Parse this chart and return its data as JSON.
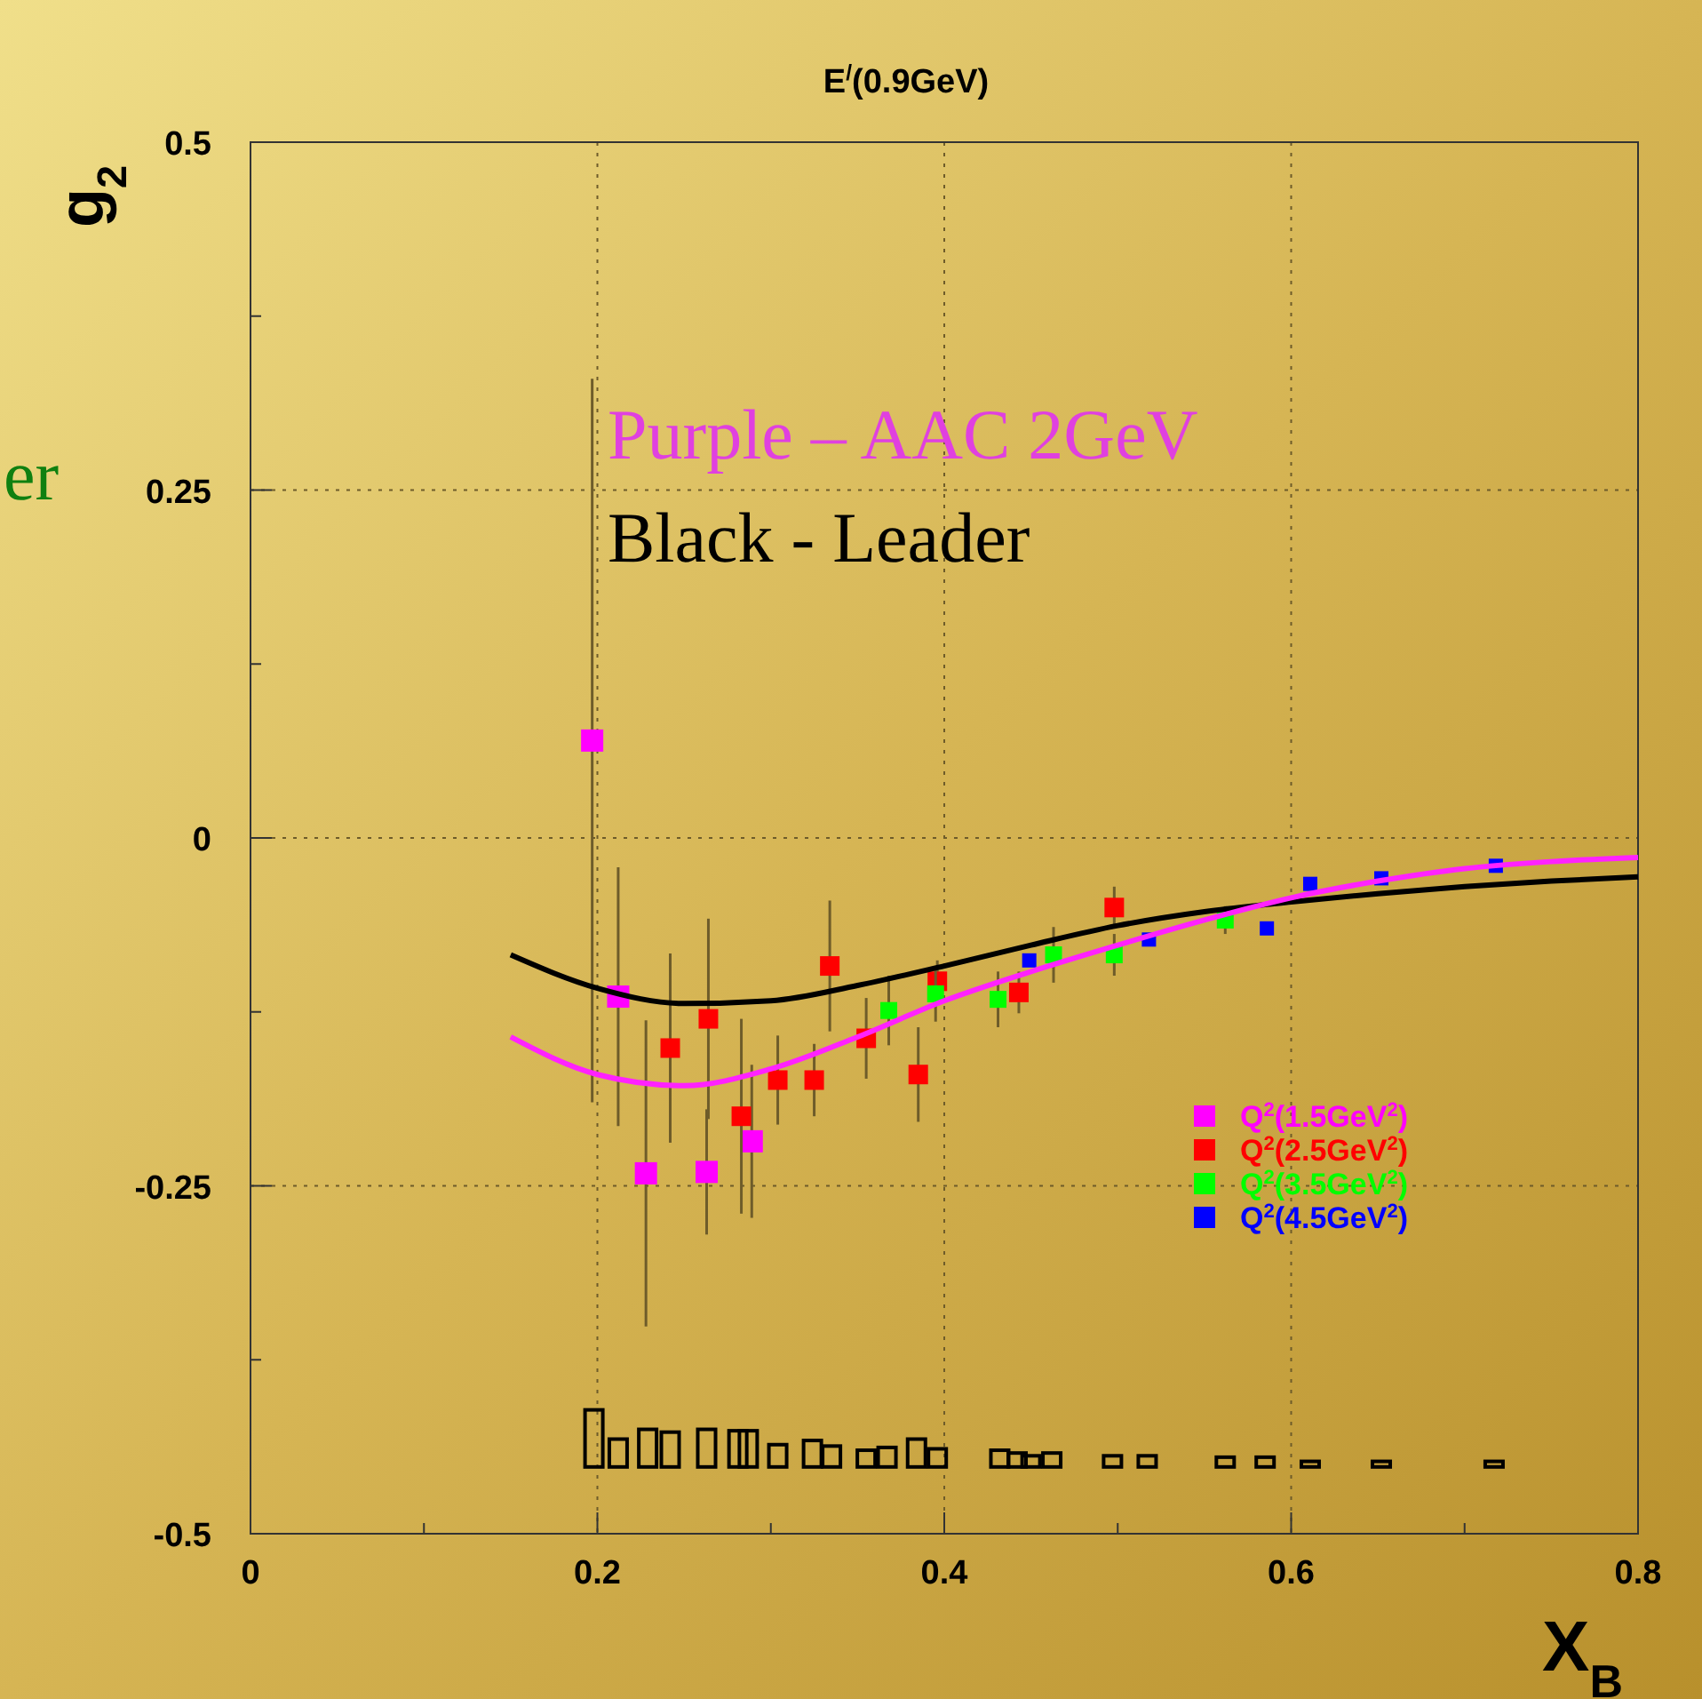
{
  "chart_data": {
    "type": "scatter",
    "title": "E$^{/}$(0.9GeV)",
    "xlabel": "X$_{B}$",
    "ylabel": "g$_{2}$",
    "xlim": [
      0,
      0.8
    ],
    "ylim": [
      -0.5,
      0.5
    ],
    "xticks": [
      0,
      {
        "value": 0.1,
        "label": null
      },
      0.2,
      {
        "value": 0.3,
        "label": null
      },
      0.4,
      {
        "value": 0.5,
        "label": null
      },
      0.6,
      {
        "value": 0.7,
        "label": null
      },
      0.8
    ],
    "yticks": [
      -0.5,
      {
        "value": -0.375,
        "label": null
      },
      -0.25,
      {
        "value": -0.125,
        "label": null
      },
      0,
      {
        "value": 0.125,
        "label": null
      },
      0.25,
      {
        "value": 0.375,
        "label": null
      },
      0.5
    ],
    "grid": true,
    "legend": "bottom right",
    "annotations": [
      "Purple – AAC 2GeV",
      "Black  - Leader",
      "er"
    ],
    "series": [
      {
        "type": "line",
        "color": "#000000",
        "line_style": "solid",
        "marker": "none",
        "x": [
          0.15,
          0.2,
          0.25,
          0.3,
          0.35,
          0.4,
          0.45,
          0.5,
          0.55,
          0.6,
          0.65,
          0.7,
          0.75,
          0.8
        ],
        "values": [
          -0.084,
          -0.108,
          -0.119,
          -0.117,
          -0.106,
          -0.092,
          -0.077,
          -0.063,
          -0.053,
          -0.046,
          -0.04,
          -0.035,
          -0.031,
          -0.028
        ]
      },
      {
        "type": "line",
        "color": "#ff22ff",
        "line_style": "solid",
        "marker": "none",
        "x": [
          0.15,
          0.2,
          0.25,
          0.3,
          0.35,
          0.4,
          0.45,
          0.5,
          0.55,
          0.6,
          0.65,
          0.7,
          0.75,
          0.8
        ],
        "values": [
          -0.143,
          -0.17,
          -0.178,
          -0.166,
          -0.143,
          -0.117,
          -0.096,
          -0.077,
          -0.059,
          -0.043,
          -0.031,
          -0.022,
          -0.017,
          -0.014
        ]
      },
      {
        "type": "bar",
        "color": "#000000",
        "x": [
          0.198,
          0.212,
          0.229,
          0.242,
          0.263,
          0.281,
          0.287,
          0.304,
          0.324,
          0.335,
          0.355,
          0.367,
          0.384,
          0.396,
          0.432,
          0.442,
          0.45,
          0.462,
          0.497,
          0.517,
          0.562,
          0.585,
          0.611,
          0.652,
          0.717
        ],
        "values": [
          0.041,
          0.02,
          0.027,
          0.025,
          0.027,
          0.026,
          0.026,
          0.016,
          0.019,
          0.015,
          0.012,
          0.014,
          0.02,
          0.013,
          0.012,
          0.01,
          0.008,
          0.01,
          0.008,
          0.008,
          0.007,
          0.007,
          0.004,
          0.004,
          0.004
        ],
        "base": [
          -0.452,
          -0.452,
          -0.452,
          -0.452,
          -0.452,
          -0.452,
          -0.452,
          -0.452,
          -0.452,
          -0.452,
          -0.452,
          -0.452,
          -0.452,
          -0.452,
          -0.452,
          -0.452,
          -0.452,
          -0.452,
          -0.452,
          -0.452,
          -0.452,
          -0.452,
          -0.452,
          -0.452,
          -0.452
        ]
      },
      {
        "name": "Q$^{2}$(1.5GeV$^{2}$)",
        "color": "#ff00ff",
        "marker": "square",
        "x": [
          0.197,
          0.212,
          0.228,
          0.263,
          0.289
        ],
        "values": [
          0.07,
          -0.114,
          -0.241,
          -0.24,
          -0.218
        ],
        "errors": [
          0.26,
          0.093,
          0.11,
          0.045,
          0.055
        ]
      },
      {
        "name": "Q$^{2}$(2.5GeV$^{2}$)",
        "color": "#ff0000",
        "marker": "square",
        "x": [
          0.242,
          0.264,
          0.283,
          0.304,
          0.325,
          0.334,
          0.355,
          0.385,
          0.396,
          0.443,
          0.498
        ],
        "values": [
          -0.151,
          -0.13,
          -0.2,
          -0.174,
          -0.174,
          -0.092,
          -0.144,
          -0.17,
          -0.103,
          -0.111,
          -0.05
        ],
        "errors": [
          0.068,
          0.072,
          0.07,
          0.032,
          0.026,
          0.047,
          0.029,
          0.034,
          0.015,
          0.015,
          0.015
        ]
      },
      {
        "name": "Q$^{2}$(3.5GeV$^{2}$)",
        "color": "#00ff00",
        "marker": "square",
        "x": [
          0.368,
          0.395,
          0.431,
          0.463,
          0.498,
          0.562
        ],
        "values": [
          -0.124,
          -0.112,
          -0.116,
          -0.084,
          -0.084,
          -0.059
        ],
        "errors": [
          0.025,
          0.02,
          0.02,
          0.02,
          0.015,
          0.01
        ]
      },
      {
        "name": "Q$^{2}$(4.5GeV$^{2}$)",
        "color": "#0000ff",
        "marker": "square",
        "x": [
          0.449,
          0.518,
          0.586,
          0.611,
          0.652,
          0.718
        ],
        "values": [
          -0.088,
          -0.073,
          -0.065,
          -0.033,
          -0.029,
          -0.02
        ]
      }
    ]
  }
}
